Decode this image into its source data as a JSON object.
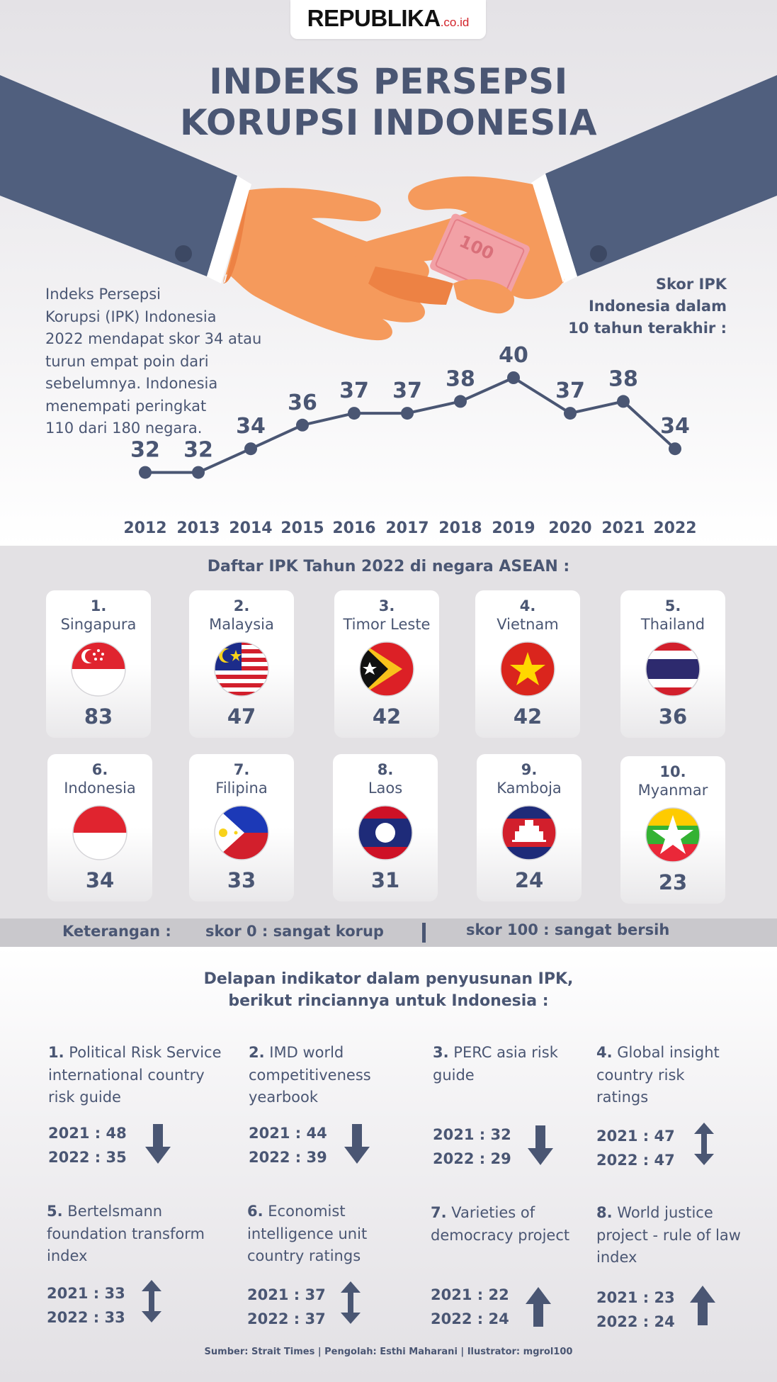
{
  "header": {
    "logo_main": "REPUBLIKA",
    "logo_suffix": ".co.id",
    "title_line1": "INDEKS PERSEPSI",
    "title_line2": "KORUPSI INDONESIA",
    "banknote_label": "100"
  },
  "intro": {
    "lines": [
      "Indeks Persepsi",
      "Korupsi (IPK) Indonesia",
      "2022 mendapat skor 34 atau",
      "turun empat poin dari",
      "sebelumnya. Indonesia",
      "menempati peringkat",
      "110 dari 180 negara."
    ]
  },
  "chart_heading": {
    "lines": [
      "Skor IPK",
      "Indonesia dalam",
      "10 tahun terakhir :"
    ]
  },
  "chart_data": {
    "type": "line",
    "title": "Skor IPK Indonesia dalam 10 tahun terakhir :",
    "categories": [
      "2012",
      "2013",
      "2014",
      "2015",
      "2016",
      "2017",
      "2018",
      "2019",
      "2020",
      "2021",
      "2022"
    ],
    "values": [
      32,
      32,
      34,
      36,
      37,
      37,
      38,
      40,
      37,
      38,
      34
    ],
    "data_labels": [
      "32",
      "32",
      "34",
      "36",
      "37",
      "37",
      "38",
      "40",
      "37",
      "38",
      "34"
    ],
    "grid": false,
    "legend": "none",
    "line_color": "#4a5673"
  },
  "asean": {
    "heading": "Daftar IPK Tahun 2022 di negara ASEAN :",
    "countries": [
      {
        "rank": "1.",
        "name": "Singapura",
        "score": "83",
        "flag": "singapore-flag"
      },
      {
        "rank": "2.",
        "name": "Malaysia",
        "score": "47",
        "flag": "malaysia-flag"
      },
      {
        "rank": "3.",
        "name": "Timor Leste",
        "score": "42",
        "flag": "timor-leste-flag"
      },
      {
        "rank": "4.",
        "name": "Vietnam",
        "score": "42",
        "flag": "vietnam-flag"
      },
      {
        "rank": "5.",
        "name": "Thailand",
        "score": "36",
        "flag": "thailand-flag"
      },
      {
        "rank": "6.",
        "name": "Indonesia",
        "score": "34",
        "flag": "indonesia-flag"
      },
      {
        "rank": "7.",
        "name": "Filipina",
        "score": "33",
        "flag": "philippines-flag"
      },
      {
        "rank": "8.",
        "name": "Laos",
        "score": "31",
        "flag": "laos-flag"
      },
      {
        "rank": "9.",
        "name": "Kamboja",
        "score": "24",
        "flag": "cambodia-flag"
      },
      {
        "rank": "10.",
        "name": "Myanmar",
        "score": "23",
        "flag": "myanmar-flag"
      }
    ]
  },
  "legend": {
    "label": "Keterangan :",
    "min": "skor 0 : sangat korup",
    "max": "skor 100 : sangat bersih"
  },
  "indicators": {
    "heading_line1": "Delapan indikator dalam penyusunan IPK,",
    "heading_line2": "berikut rinciannya untuk Indonesia :",
    "items": [
      {
        "num": "1.",
        "title": "Political Risk Service international country risk guide",
        "y2021": "2021   : 48",
        "y2022": "2022  : 35",
        "trend": "down"
      },
      {
        "num": "2.",
        "title": "IMD world competitiveness yearbook",
        "y2021": "2021   : 44",
        "y2022": "2022  : 39",
        "trend": "down"
      },
      {
        "num": "3.",
        "title": "PERC asia risk guide",
        "y2021": "2021   : 32",
        "y2022": "2022  : 29",
        "trend": "down"
      },
      {
        "num": "4.",
        "title": "Global insight country risk ratings",
        "y2021": "2021   : 47",
        "y2022": "2022  : 47",
        "trend": "same"
      },
      {
        "num": "5.",
        "title": "Bertelsmann foundation transform index",
        "y2021": "2021   : 33",
        "y2022": "2022  : 33",
        "trend": "same"
      },
      {
        "num": "6.",
        "title": "Economist intelligence unit country ratings",
        "y2021": "2021   : 37",
        "y2022": "2022  : 37",
        "trend": "same"
      },
      {
        "num": "7.",
        "title": "Varieties of democracy project",
        "y2021": "2021   : 22",
        "y2022": "2022  : 24",
        "trend": "up"
      },
      {
        "num": "8.",
        "title": "World justice project - rule of law index",
        "y2021": "2021   : 23",
        "y2022": "2022  : 24",
        "trend": "up"
      }
    ]
  },
  "source": "Sumber: Strait Times | Pengolah: Esthi Maharani | Ilustrator: mgrol100",
  "colors": {
    "navy": "#4a5673",
    "skin": "#f59a5c",
    "skin_shadow": "#ed8244",
    "banknote": "#f2a1a6"
  }
}
